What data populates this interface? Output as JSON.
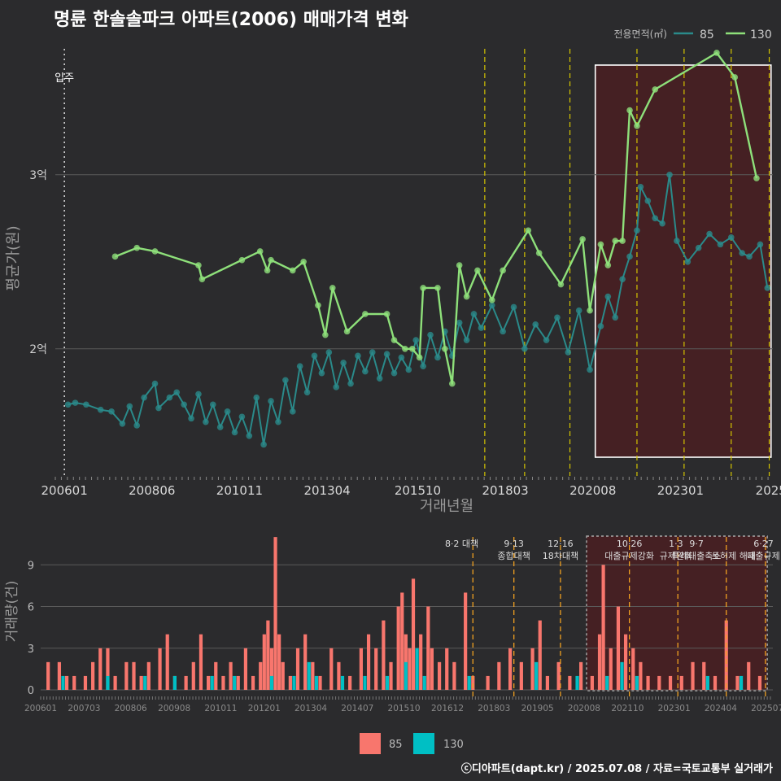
{
  "title": "명륜 한솔솔파크 아파트(2006) 매매가격 변화",
  "footer": "ⓒ디아파트(dapt.kr) / 2025.07.08 / 자료=국토교통부 실거래가",
  "colors": {
    "bg": "#2b2b2d",
    "s85": "#2a8a8a",
    "s130": "#8ee07a",
    "bar85": "#f8766d",
    "bar130": "#00bfc4",
    "vline": "#d4c400",
    "region": "#4a1e22"
  },
  "chart_data": [
    {
      "type": "line",
      "title": "명륜 한솔솔파크 아파트(2006) 매매가격 변화",
      "xlabel": "거래년월",
      "ylabel": "평균가(원)",
      "x_ticks": [
        "200601",
        "200806",
        "201011",
        "201304",
        "201510",
        "201803",
        "202008",
        "202301",
        "2025"
      ],
      "y_ticks": [
        {
          "value": 2.0,
          "label": "2억"
        },
        {
          "value": 3.0,
          "label": "3억"
        }
      ],
      "ylim": [
        1.27,
        3.77
      ],
      "legend": {
        "title": "전용면적(㎡)",
        "entries": [
          "85",
          "130"
        ],
        "position": "top-right"
      },
      "move_in_label": "입주",
      "move_in_x": 2006.0,
      "policy_x": [
        2017.6,
        2018.7,
        2019.95,
        2021.8,
        2023.1,
        2024.4,
        2025.45
      ],
      "highlight_range": [
        2020.65,
        2025.5
      ],
      "series": [
        {
          "name": "85",
          "points": [
            [
              2006.1,
              1.68
            ],
            [
              2006.3,
              1.69
            ],
            [
              2006.6,
              1.68
            ],
            [
              2007.0,
              1.65
            ],
            [
              2007.3,
              1.64
            ],
            [
              2007.6,
              1.57
            ],
            [
              2007.8,
              1.67
            ],
            [
              2008.0,
              1.56
            ],
            [
              2008.2,
              1.72
            ],
            [
              2008.5,
              1.8
            ],
            [
              2008.6,
              1.66
            ],
            [
              2008.9,
              1.72
            ],
            [
              2009.1,
              1.75
            ],
            [
              2009.3,
              1.68
            ],
            [
              2009.5,
              1.6
            ],
            [
              2009.7,
              1.74
            ],
            [
              2009.9,
              1.58
            ],
            [
              2010.1,
              1.68
            ],
            [
              2010.3,
              1.55
            ],
            [
              2010.5,
              1.64
            ],
            [
              2010.7,
              1.52
            ],
            [
              2010.9,
              1.61
            ],
            [
              2011.1,
              1.5
            ],
            [
              2011.3,
              1.72
            ],
            [
              2011.5,
              1.45
            ],
            [
              2011.7,
              1.7
            ],
            [
              2011.9,
              1.58
            ],
            [
              2012.1,
              1.82
            ],
            [
              2012.3,
              1.64
            ],
            [
              2012.5,
              1.9
            ],
            [
              2012.7,
              1.75
            ],
            [
              2012.9,
              1.96
            ],
            [
              2013.1,
              1.86
            ],
            [
              2013.3,
              1.98
            ],
            [
              2013.5,
              1.78
            ],
            [
              2013.7,
              1.92
            ],
            [
              2013.9,
              1.8
            ],
            [
              2014.1,
              1.96
            ],
            [
              2014.3,
              1.87
            ],
            [
              2014.5,
              1.98
            ],
            [
              2014.7,
              1.83
            ],
            [
              2014.9,
              1.97
            ],
            [
              2015.1,
              1.86
            ],
            [
              2015.3,
              1.95
            ],
            [
              2015.5,
              1.88
            ],
            [
              2015.7,
              2.05
            ],
            [
              2015.9,
              1.9
            ],
            [
              2016.1,
              2.08
            ],
            [
              2016.3,
              1.95
            ],
            [
              2016.5,
              2.1
            ],
            [
              2016.7,
              1.96
            ],
            [
              2016.9,
              2.15
            ],
            [
              2017.1,
              2.05
            ],
            [
              2017.3,
              2.2
            ],
            [
              2017.5,
              2.12
            ],
            [
              2017.8,
              2.25
            ],
            [
              2018.1,
              2.1
            ],
            [
              2018.4,
              2.24
            ],
            [
              2018.7,
              2.0
            ],
            [
              2019.0,
              2.14
            ],
            [
              2019.3,
              2.05
            ],
            [
              2019.6,
              2.18
            ],
            [
              2019.9,
              1.98
            ],
            [
              2020.2,
              2.22
            ],
            [
              2020.5,
              1.88
            ],
            [
              2020.8,
              2.13
            ],
            [
              2021.0,
              2.3
            ],
            [
              2021.2,
              2.18
            ],
            [
              2021.4,
              2.4
            ],
            [
              2021.6,
              2.53
            ],
            [
              2021.8,
              2.68
            ],
            [
              2021.9,
              2.93
            ],
            [
              2022.1,
              2.85
            ],
            [
              2022.3,
              2.75
            ],
            [
              2022.5,
              2.72
            ],
            [
              2022.7,
              3.0
            ],
            [
              2022.9,
              2.62
            ],
            [
              2023.2,
              2.5
            ],
            [
              2023.5,
              2.58
            ],
            [
              2023.8,
              2.66
            ],
            [
              2024.1,
              2.6
            ],
            [
              2024.4,
              2.64
            ],
            [
              2024.7,
              2.55
            ],
            [
              2024.9,
              2.53
            ],
            [
              2025.2,
              2.6
            ],
            [
              2025.4,
              2.35
            ]
          ]
        },
        {
          "name": "130",
          "points": [
            [
              2007.4,
              2.53
            ],
            [
              2008.0,
              2.58
            ],
            [
              2008.5,
              2.56
            ],
            [
              2009.7,
              2.48
            ],
            [
              2009.8,
              2.4
            ],
            [
              2010.9,
              2.51
            ],
            [
              2011.4,
              2.56
            ],
            [
              2011.6,
              2.45
            ],
            [
              2011.7,
              2.51
            ],
            [
              2012.3,
              2.45
            ],
            [
              2012.6,
              2.5
            ],
            [
              2013.0,
              2.25
            ],
            [
              2013.2,
              2.08
            ],
            [
              2013.4,
              2.35
            ],
            [
              2013.8,
              2.1
            ],
            [
              2014.3,
              2.2
            ],
            [
              2014.9,
              2.2
            ],
            [
              2015.1,
              2.05
            ],
            [
              2015.4,
              2.0
            ],
            [
              2015.6,
              2.0
            ],
            [
              2015.8,
              1.95
            ],
            [
              2015.9,
              2.35
            ],
            [
              2016.3,
              2.35
            ],
            [
              2016.5,
              2.0
            ],
            [
              2016.7,
              1.8
            ],
            [
              2016.9,
              2.48
            ],
            [
              2017.1,
              2.3
            ],
            [
              2017.4,
              2.45
            ],
            [
              2017.8,
              2.28
            ],
            [
              2018.1,
              2.45
            ],
            [
              2018.8,
              2.68
            ],
            [
              2019.1,
              2.55
            ],
            [
              2019.7,
              2.37
            ],
            [
              2020.3,
              2.63
            ],
            [
              2020.5,
              2.22
            ],
            [
              2020.8,
              2.6
            ],
            [
              2021.0,
              2.48
            ],
            [
              2021.2,
              2.62
            ],
            [
              2021.4,
              2.62
            ],
            [
              2021.6,
              3.37
            ],
            [
              2021.8,
              3.28
            ],
            [
              2022.3,
              3.49
            ],
            [
              2024.0,
              3.7
            ],
            [
              2024.5,
              3.56
            ],
            [
              2025.1,
              2.98
            ]
          ]
        }
      ]
    },
    {
      "type": "bar",
      "ylabel": "거래량(건)",
      "y_ticks": [
        0,
        3,
        6,
        9
      ],
      "ylim": [
        0,
        11.3
      ],
      "x_ticks": [
        "200601",
        "200703",
        "200806",
        "200908",
        "201011",
        "201201",
        "201304",
        "201407",
        "201510",
        "201612",
        "201803",
        "201905",
        "202008",
        "202110",
        "202301",
        "202404",
        "202507"
      ],
      "annotations": [
        {
          "x": 2017.3,
          "lines": [
            "8·2 대책"
          ]
        },
        {
          "x": 2018.7,
          "lines": [
            "9·13",
            "종합대책"
          ]
        },
        {
          "x": 2019.95,
          "lines": [
            "12·16",
            "18차대책"
          ]
        },
        {
          "x": 2021.8,
          "lines": [
            "10·26",
            "대출규제강화"
          ]
        },
        {
          "x": 2023.05,
          "lines": [
            "1·3",
            "규제완화"
          ]
        },
        {
          "x": 2023.6,
          "lines": [
            "9·7",
            "특례대출축소"
          ]
        },
        {
          "x": 2024.6,
          "lines": [
            "",
            "토허제 해제"
          ]
        },
        {
          "x": 2025.4,
          "lines": [
            "6·27",
            "대출규제"
          ]
        }
      ],
      "legend": {
        "entries": [
          "85",
          "130"
        ],
        "position": "bottom"
      },
      "series": [
        {
          "name": "85",
          "points": [
            [
              2006.2,
              2
            ],
            [
              2006.5,
              2
            ],
            [
              2006.7,
              1
            ],
            [
              2006.9,
              1
            ],
            [
              2007.2,
              1
            ],
            [
              2007.4,
              2
            ],
            [
              2007.6,
              3
            ],
            [
              2007.8,
              3
            ],
            [
              2008.0,
              1
            ],
            [
              2008.3,
              2
            ],
            [
              2008.5,
              2
            ],
            [
              2008.7,
              1
            ],
            [
              2008.9,
              2
            ],
            [
              2009.2,
              3
            ],
            [
              2009.4,
              4
            ],
            [
              2009.6,
              1
            ],
            [
              2009.9,
              1
            ],
            [
              2010.1,
              2
            ],
            [
              2010.3,
              4
            ],
            [
              2010.5,
              1
            ],
            [
              2010.7,
              2
            ],
            [
              2010.9,
              1
            ],
            [
              2011.1,
              2
            ],
            [
              2011.3,
              1
            ],
            [
              2011.5,
              3
            ],
            [
              2011.7,
              1
            ],
            [
              2011.9,
              2
            ],
            [
              2012.0,
              4
            ],
            [
              2012.1,
              5
            ],
            [
              2012.2,
              3
            ],
            [
              2012.3,
              11
            ],
            [
              2012.4,
              4
            ],
            [
              2012.5,
              2
            ],
            [
              2012.7,
              1
            ],
            [
              2012.9,
              3
            ],
            [
              2013.1,
              4
            ],
            [
              2013.3,
              2
            ],
            [
              2013.5,
              1
            ],
            [
              2013.8,
              3
            ],
            [
              2014.0,
              2
            ],
            [
              2014.3,
              1
            ],
            [
              2014.6,
              3
            ],
            [
              2014.8,
              4
            ],
            [
              2015.0,
              3
            ],
            [
              2015.2,
              5
            ],
            [
              2015.4,
              2
            ],
            [
              2015.6,
              6
            ],
            [
              2015.7,
              7
            ],
            [
              2015.8,
              4
            ],
            [
              2015.9,
              3
            ],
            [
              2016.0,
              8
            ],
            [
              2016.2,
              4
            ],
            [
              2016.4,
              6
            ],
            [
              2016.5,
              3
            ],
            [
              2016.7,
              2
            ],
            [
              2016.9,
              3
            ],
            [
              2017.1,
              2
            ],
            [
              2017.4,
              7
            ],
            [
              2017.6,
              1
            ],
            [
              2018.0,
              1
            ],
            [
              2018.3,
              2
            ],
            [
              2018.6,
              3
            ],
            [
              2018.9,
              2
            ],
            [
              2019.2,
              3
            ],
            [
              2019.4,
              5
            ],
            [
              2019.6,
              1
            ],
            [
              2019.9,
              2
            ],
            [
              2020.2,
              1
            ],
            [
              2020.5,
              2
            ],
            [
              2020.8,
              1
            ],
            [
              2021.0,
              4
            ],
            [
              2021.1,
              9
            ],
            [
              2021.3,
              3
            ],
            [
              2021.5,
              6
            ],
            [
              2021.7,
              4
            ],
            [
              2021.9,
              3
            ],
            [
              2022.1,
              2
            ],
            [
              2022.3,
              1
            ],
            [
              2022.6,
              1
            ],
            [
              2022.9,
              1
            ],
            [
              2023.2,
              1
            ],
            [
              2023.5,
              2
            ],
            [
              2023.8,
              2
            ],
            [
              2024.1,
              1
            ],
            [
              2024.4,
              5
            ],
            [
              2024.7,
              1
            ],
            [
              2025.0,
              2
            ],
            [
              2025.3,
              1
            ]
          ]
        },
        {
          "name": "130",
          "points": [
            [
              2006.6,
              1
            ],
            [
              2007.8,
              1
            ],
            [
              2008.8,
              1
            ],
            [
              2009.6,
              1
            ],
            [
              2010.6,
              1
            ],
            [
              2011.2,
              1
            ],
            [
              2012.2,
              1
            ],
            [
              2012.8,
              1
            ],
            [
              2013.2,
              2
            ],
            [
              2013.4,
              1
            ],
            [
              2014.1,
              1
            ],
            [
              2014.7,
              1
            ],
            [
              2015.3,
              1
            ],
            [
              2015.8,
              2
            ],
            [
              2016.1,
              3
            ],
            [
              2016.3,
              1
            ],
            [
              2017.5,
              1
            ],
            [
              2019.3,
              2
            ],
            [
              2020.4,
              1
            ],
            [
              2021.2,
              1
            ],
            [
              2021.6,
              2
            ],
            [
              2022.0,
              1
            ],
            [
              2023.9,
              1
            ],
            [
              2024.8,
              1
            ]
          ]
        }
      ]
    }
  ]
}
